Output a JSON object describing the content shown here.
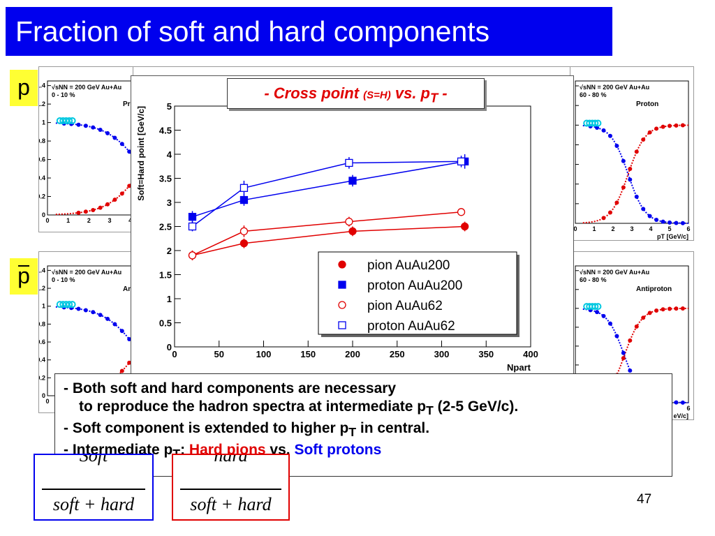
{
  "slide": {
    "title": "Fraction of soft and hard components",
    "page_number": "47"
  },
  "particles": {
    "proton": "p",
    "antiproton": "p"
  },
  "panels": {
    "energy_label": "√s",
    "energy_sub": "NN",
    "energy_text": " = 200 GeV Au+Au",
    "central": "0 - 10 %",
    "peripheral": "60 - 80 %",
    "proton_label": "Proton",
    "antiproton_label": "Antiproton",
    "central_proton_partial": "Pro",
    "central_antiproton_partial": "An",
    "pt_axis_label": "p",
    "pt_axis_sub": "T",
    "pt_axis_unit": " [GeV/c]",
    "pt_axis_unit_partial": "eV/c]",
    "y_axis_partial": "n",
    "y_ticks": [
      "0",
      "0.2",
      "0.4",
      "0.6",
      "0.8",
      "1",
      "1.2",
      "1.4"
    ],
    "x_ticks": [
      "0",
      "1",
      "2",
      "3",
      "4",
      "5",
      "6"
    ]
  },
  "cross_title": {
    "prefix": "- Cross point ",
    "small": "(S=H)",
    "suffix": " vs. p",
    "sub": "T",
    "end": " -"
  },
  "chart_data": {
    "type": "line",
    "title": "- Cross point (S=H) vs. pT -",
    "xlabel": "Npart",
    "ylabel": "Soft=Hard point [GeV/c]",
    "xlim": [
      0,
      400
    ],
    "ylim": [
      0,
      5
    ],
    "x_ticks": [
      "0",
      "50",
      "100",
      "150",
      "200",
      "250",
      "300",
      "350",
      "400"
    ],
    "y_ticks": [
      "0",
      "0.5",
      "1",
      "1.5",
      "2",
      "2.5",
      "3",
      "3.5",
      "4",
      "4.5",
      "5"
    ],
    "legend_position": "bottom-right",
    "series": [
      {
        "name": "pion AuAu200",
        "color": "#e00000",
        "marker": "filled-circle",
        "x": [
          20,
          78,
          200,
          326
        ],
        "y": [
          1.9,
          2.15,
          2.4,
          2.5
        ],
        "err": [
          0.1,
          0.1,
          0.1,
          0.1
        ]
      },
      {
        "name": "proton AuAu200",
        "color": "#0000ee",
        "marker": "filled-square",
        "x": [
          20,
          78,
          200,
          326
        ],
        "y": [
          2.7,
          3.05,
          3.45,
          3.85
        ],
        "err": [
          0.12,
          0.12,
          0.12,
          0.15
        ]
      },
      {
        "name": "pion AuAu62",
        "color": "#e00000",
        "marker": "open-circle",
        "x": [
          20,
          78,
          196,
          322
        ],
        "y": [
          1.9,
          2.4,
          2.6,
          2.8
        ],
        "err": [
          0.1,
          0.12,
          0.1,
          0.08
        ]
      },
      {
        "name": "proton AuAu62",
        "color": "#0000ee",
        "marker": "open-square",
        "x": [
          20,
          78,
          196,
          322
        ],
        "y": [
          2.5,
          3.3,
          3.82,
          3.85
        ],
        "err": [
          0.1,
          0.15,
          0.12,
          0.12
        ]
      }
    ]
  },
  "notes": {
    "line1": "- Both soft and hard components are necessary",
    "line2a": "to reproduce the hadron spectra at intermediate p",
    "line2sub": "T",
    "line2b": " (2-5 GeV/c).",
    "line3a": "- Soft component is extended to higher p",
    "line3sub": "T",
    "line3b": " in central.",
    "line4a": "- Intermediate p",
    "line4sub": "T",
    "line4b": ": ",
    "hard_pions": "Hard pions",
    "vs": " vs. ",
    "soft_protons": "Soft protons"
  },
  "formulas": {
    "soft_num": "Soft",
    "hard_num": "hard",
    "denominator": "soft + hard",
    "soft_color": "#0000ee",
    "hard_color": "#e00000"
  }
}
